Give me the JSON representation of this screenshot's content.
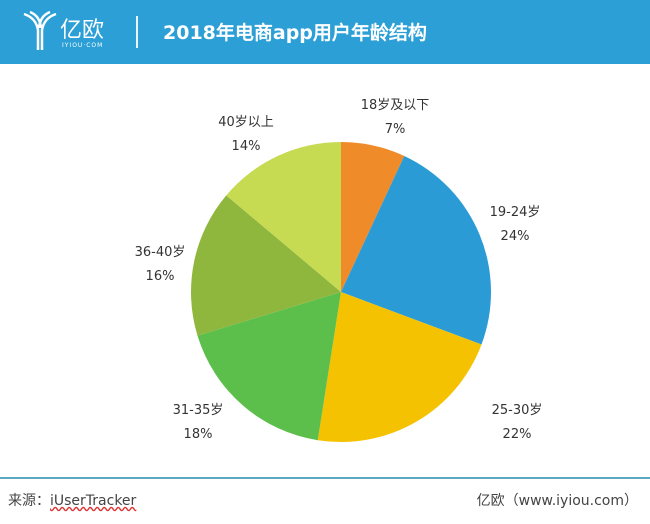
{
  "header": {
    "logo_cn": "亿欧",
    "logo_en": "IYIOU·COM",
    "title": "2018年电商app用户年龄结构"
  },
  "chart_data": {
    "type": "pie",
    "title": "2018年电商app用户年龄结构",
    "start": "top",
    "direction": "clockwise",
    "slices": [
      {
        "label": "18岁及以下",
        "value": 7,
        "pct": "7%",
        "color": "#f08b2a"
      },
      {
        "label": "19-24岁",
        "value": 24,
        "pct": "24%",
        "color": "#2b9bd6"
      },
      {
        "label": "25-30岁",
        "value": 22,
        "pct": "22%",
        "color": "#f4c200"
      },
      {
        "label": "31-35岁",
        "value": 18,
        "pct": "18%",
        "color": "#5dbf4b"
      },
      {
        "label": "36-40岁",
        "value": 16,
        "pct": "16%",
        "color": "#8fb63d"
      },
      {
        "label": "40岁以上",
        "value": 14,
        "pct": "14%",
        "color": "#c6da52"
      }
    ]
  },
  "footer": {
    "source_prefix": "来源：",
    "source": "iUserTracker",
    "credit": "亿欧（www.iyiou.com）"
  }
}
